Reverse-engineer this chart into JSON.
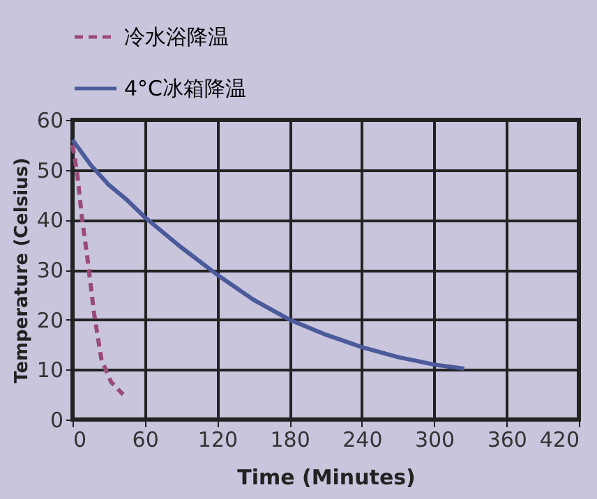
{
  "chart_data": {
    "type": "line",
    "xlabel": "Time (Minutes)",
    "ylabel": "Temperature (Celsius)",
    "xlim": [
      0,
      420
    ],
    "xticks": [
      0,
      60,
      120,
      180,
      240,
      300,
      360,
      420
    ],
    "ylim": [
      0,
      60
    ],
    "yticks": [
      0,
      10,
      20,
      30,
      40,
      50,
      60
    ],
    "grid": true,
    "legend": "top left",
    "marker": "none",
    "series": [
      {
        "name": "冷水浴降温",
        "color": "#9a4a7a",
        "line_style": "dashed",
        "x": [
          0,
          4,
          8,
          12,
          18,
          24,
          32,
          42
        ],
        "values": [
          55,
          49,
          40,
          33,
          21,
          12,
          7.5,
          5
        ]
      },
      {
        "name": "4°C冰箱降温",
        "color": "#4a5a9a",
        "line_style": "solid",
        "x": [
          0,
          15,
          30,
          45,
          60,
          90,
          120,
          150,
          180,
          210,
          240,
          270,
          300,
          325
        ],
        "values": [
          56,
          51,
          47,
          44,
          40.5,
          34.5,
          29,
          24,
          20,
          17,
          14.5,
          12.5,
          11,
          10.2
        ]
      }
    ]
  }
}
